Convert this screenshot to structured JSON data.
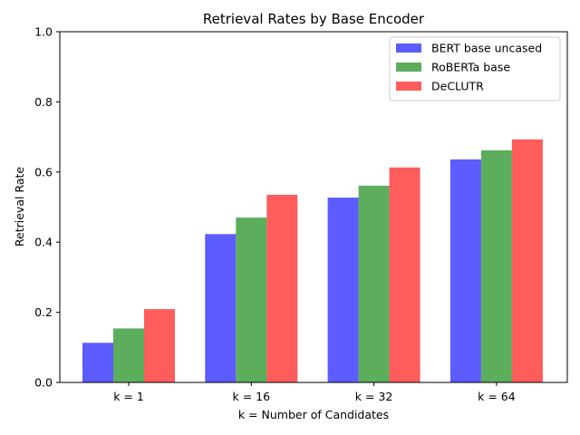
{
  "chart_data": {
    "type": "bar",
    "title": "Retrieval Rates by Base Encoder",
    "xlabel": "k = Number of Candidates",
    "ylabel": "Retrieval Rate",
    "categories": [
      "k = 1",
      "k = 16",
      "k = 32",
      "k = 64"
    ],
    "series": [
      {
        "name": "BERT base uncased",
        "color": "#3333ff",
        "values": [
          0.113,
          0.423,
          0.527,
          0.636
        ]
      },
      {
        "name": "RoBERTa base",
        "color": "#339933",
        "values": [
          0.154,
          0.47,
          0.561,
          0.662
        ]
      },
      {
        "name": "DeCLUTR",
        "color": "#ff3333",
        "values": [
          0.209,
          0.535,
          0.613,
          0.693
        ]
      }
    ],
    "ylim": [
      0,
      1.0
    ],
    "yticks": [
      "0.0",
      "0.2",
      "0.4",
      "0.6",
      "0.8",
      "1.0"
    ],
    "grid": false,
    "legend": "top-right"
  }
}
